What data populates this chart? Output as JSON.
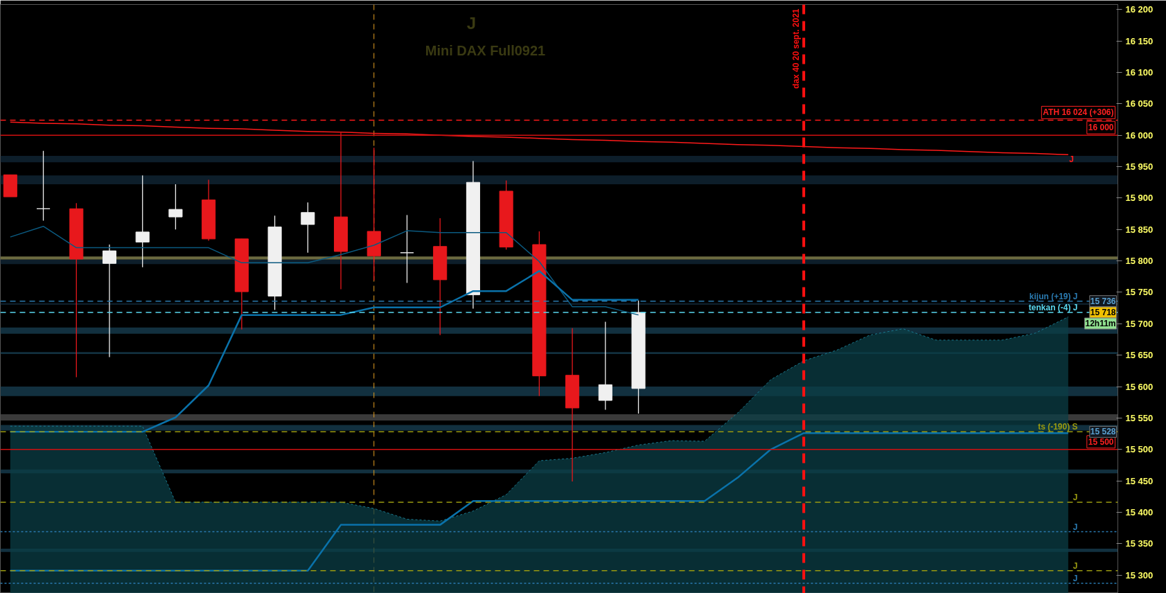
{
  "chart_data": {
    "type": "candlestick",
    "title": "J",
    "subtitle": "Mini DAX Full0921",
    "categories": [
      null,
      null,
      null,
      null,
      null,
      null,
      null,
      null,
      null,
      null,
      null,
      null,
      null,
      null,
      null,
      null,
      null,
      null,
      null,
      null,
      null,
      null,
      null,
      null,
      null,
      null,
      null,
      null,
      null,
      null,
      null,
      null,
      null
    ],
    "ohlc": [
      [
        15937,
        15937,
        15902,
        15902
      ],
      [
        15883,
        15975,
        15864,
        15883
      ],
      [
        15883,
        15892,
        15615,
        15803
      ],
      [
        15796,
        15826,
        15647,
        15816
      ],
      [
        15830,
        15936,
        15790,
        15846
      ],
      [
        15870,
        15922,
        15850,
        15882
      ],
      [
        15897,
        15929,
        15832,
        15835
      ],
      [
        15835,
        15835,
        15691,
        15751
      ],
      [
        15744,
        15872,
        15722,
        15854
      ],
      [
        15858,
        15893,
        15813,
        15877
      ],
      [
        15870,
        16004,
        15755,
        15815
      ],
      [
        15847,
        15980,
        15769,
        15808
      ],
      [
        15813,
        15873,
        15765,
        15813
      ],
      [
        15823,
        15868,
        15682,
        15770
      ],
      [
        15746,
        15959,
        15724,
        15925
      ],
      [
        15911,
        15928,
        15818,
        15822
      ],
      [
        15826,
        15847,
        15585,
        15617
      ],
      [
        15618,
        15693,
        15449,
        15566
      ],
      [
        15578,
        15703,
        15563,
        15603
      ],
      [
        15597,
        15737,
        15557,
        15718
      ],
      null,
      null,
      null,
      null,
      null,
      null,
      null,
      null,
      null,
      null,
      null,
      null,
      null
    ],
    "series": [
      {
        "type": "area",
        "color": "#0b3d45",
        "values": [
          15537,
          15537,
          15537,
          15537,
          15537,
          15416,
          15416,
          15416,
          15416,
          15416,
          15416,
          15406,
          15389,
          15386,
          15402,
          15428,
          15482,
          15486,
          15495,
          15507,
          15514,
          15513,
          15558,
          15611,
          15641,
          15658,
          15682,
          15692,
          15674,
          15674,
          15674,
          15685,
          15711
        ]
      },
      {
        "type": "line",
        "color": "#0b5a80",
        "values": [
          15838,
          15855,
          15821,
          15821,
          15821,
          15821,
          15821,
          15797,
          15797,
          15797,
          15810,
          15825,
          15848,
          15845,
          15845,
          15845,
          15799,
          15727,
          15727,
          15714,
          null,
          null,
          null,
          null,
          null,
          null,
          null,
          null,
          null,
          null,
          null,
          null,
          null
        ]
      },
      {
        "type": "line",
        "color": "#0a72aa",
        "values": [
          15528,
          15528,
          15528,
          15528,
          15528,
          15551,
          15602,
          15714,
          15714,
          15714,
          15714,
          15726,
          15726,
          15726,
          15752,
          15752,
          15784,
          15738,
          15738,
          15738,
          null,
          null,
          null,
          null,
          null,
          null,
          null,
          null,
          null,
          null,
          null,
          null,
          null
        ]
      },
      {
        "type": "line",
        "color": "#0a72aa",
        "values": [
          15307,
          15307,
          15307,
          15307,
          15307,
          15307,
          15307,
          15307,
          15307,
          15307,
          15380,
          15380,
          15380,
          15380,
          15418,
          15418,
          15418,
          15418,
          15418,
          15418,
          15418,
          15418,
          15455,
          15500,
          15526,
          15526,
          15526,
          15526,
          15526,
          15526,
          15526,
          15526,
          15526
        ]
      },
      {
        "type": "line",
        "name": "J",
        "color": "#ff1a1a",
        "values": [
          16021,
          16019,
          16018,
          16016,
          16015,
          16013,
          16011,
          16010,
          16008,
          16006,
          16005,
          16003,
          16002,
          16000,
          15998,
          15997,
          15995,
          15993,
          15992,
          15990,
          15989,
          15987,
          15985,
          15984,
          15982,
          15980,
          15979,
          15977,
          15976,
          15974,
          15972,
          15971,
          15969
        ]
      }
    ],
    "ylim": [
      15271,
      16208
    ],
    "yticks": [
      {
        "value": 15300,
        "label": "15 300"
      },
      {
        "value": 15350,
        "label": "15 350"
      },
      {
        "value": 15400,
        "label": "15 400"
      },
      {
        "value": 15450,
        "label": "15 450"
      },
      {
        "value": 15500,
        "label": "15 500"
      },
      {
        "value": 15550,
        "label": "15 550"
      },
      {
        "value": 15600,
        "label": "15 600"
      },
      {
        "value": 15650,
        "label": "15 650"
      },
      {
        "value": 15700,
        "label": "15 700"
      },
      {
        "value": 15750,
        "label": "15 750"
      },
      {
        "value": 15800,
        "label": "15 800"
      },
      {
        "value": 15850,
        "label": "15 850"
      },
      {
        "value": 15900,
        "label": "15 900"
      },
      {
        "value": 15950,
        "label": "15 950"
      },
      {
        "value": 16000,
        "label": "16 000"
      },
      {
        "value": 16050,
        "label": "16 050"
      },
      {
        "value": 16100,
        "label": "16 100"
      },
      {
        "value": 16150,
        "label": "16 150"
      },
      {
        "value": 16200,
        "label": "16 200"
      }
    ],
    "tick_labels": "y",
    "ref_lines": [
      {
        "axis": "y",
        "value": 16024,
        "label": "ATH 16 024 (+306)",
        "color": "#ff1a1a",
        "line_style": "dashed"
      },
      {
        "axis": "y",
        "value": 16000,
        "label": "16 000",
        "color": "#d01010",
        "line_style": "solid"
      },
      {
        "axis": "y",
        "value": 15500,
        "label": "15 500",
        "color": "#d01010",
        "line_style": "solid"
      },
      {
        "axis": "y",
        "value": 15736,
        "label": "kijun (+19) J",
        "color": "#2a7ab0",
        "line_style": "dashed"
      },
      {
        "axis": "y",
        "value": 15718,
        "label": "tenkan (-4) J",
        "color": "#5ad8f0",
        "line_style": "dashed"
      },
      {
        "axis": "y",
        "value": 15528,
        "label": "ts (-190) S",
        "color": "#9a9a10",
        "line_style": "dashed"
      },
      {
        "axis": "y",
        "value": 15416,
        "label": "J",
        "color": "#9a9a10",
        "line_style": "dashed"
      },
      {
        "axis": "y",
        "value": 15369,
        "label": "J",
        "color": "#2a7ab0",
        "line_style": "dotted"
      },
      {
        "axis": "y",
        "value": 15307,
        "label": "J",
        "color": "#9a9a10",
        "line_style": "dashed"
      },
      {
        "axis": "y",
        "value": 15287,
        "label": "J",
        "color": "#2a7ab0",
        "line_style": "dotted"
      }
    ],
    "bands": [
      {
        "axis": "y",
        "from": 15957,
        "to": 15967,
        "color": "#0d1e2a"
      },
      {
        "axis": "y",
        "from": 15922,
        "to": 15936,
        "color": "#0d1e2a"
      },
      {
        "axis": "y",
        "from": 15802,
        "to": 15807,
        "color": "#6b6a40"
      },
      {
        "axis": "y",
        "from": 15795,
        "to": 15802,
        "color": "#0d1e2a"
      },
      {
        "axis": "y",
        "from": 15730,
        "to": 15733,
        "color": "#0d1e2a"
      },
      {
        "axis": "y",
        "from": 15684,
        "to": 15694,
        "color": "#12303f"
      },
      {
        "axis": "y",
        "from": 15652,
        "to": 15655,
        "color": "#12303f"
      },
      {
        "axis": "y",
        "from": 15585,
        "to": 15600,
        "color": "#12303f"
      },
      {
        "axis": "y",
        "from": 15546,
        "to": 15556,
        "color": "#3a3a3a"
      },
      {
        "axis": "y",
        "from": 15530,
        "to": 15539,
        "color": "#12303f"
      },
      {
        "axis": "y",
        "from": 15462,
        "to": 15468,
        "color": "#12303f"
      },
      {
        "axis": "y",
        "from": 15337,
        "to": 15342,
        "color": "#12303f"
      }
    ],
    "annotations": [
      {
        "text": "15 736",
        "y": 15736
      },
      {
        "text": "15 718",
        "y": 15718
      },
      "12h11m",
      {
        "text": "15 528",
        "y": 15528
      },
      "dax 40 20 sept. 2021"
    ],
    "grid": false
  }
}
